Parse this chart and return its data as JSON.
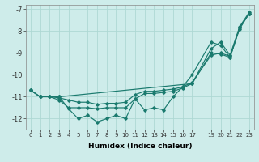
{
  "line_max_x": [
    0,
    1,
    2,
    3,
    17,
    19,
    20,
    21,
    22,
    23
  ],
  "line_max_y": [
    -10.7,
    -11.0,
    -11.0,
    -11.0,
    -10.4,
    -8.8,
    -8.5,
    -9.1,
    -7.8,
    -7.15
  ],
  "line_mean_x": [
    0,
    1,
    2,
    3,
    4,
    5,
    6,
    7,
    8,
    9,
    10,
    11,
    12,
    13,
    14,
    15,
    16,
    17,
    19,
    20,
    21,
    22,
    23
  ],
  "line_mean_y": [
    -10.7,
    -11.0,
    -11.0,
    -11.05,
    -11.15,
    -11.25,
    -11.25,
    -11.35,
    -11.3,
    -11.3,
    -11.25,
    -10.9,
    -10.75,
    -10.75,
    -10.7,
    -10.65,
    -10.55,
    -10.35,
    -9.1,
    -9.0,
    -9.15,
    -7.9,
    -7.2
  ],
  "line_p90_x": [
    0,
    1,
    2,
    3,
    4,
    5,
    6,
    7,
    8,
    9,
    10,
    11,
    12,
    13,
    14,
    15,
    16,
    17,
    19,
    20,
    21,
    22,
    23
  ],
  "line_p90_y": [
    -10.7,
    -11.0,
    -11.0,
    -11.15,
    -11.5,
    -11.5,
    -11.5,
    -11.55,
    -11.5,
    -11.5,
    -11.5,
    -11.1,
    -10.85,
    -10.85,
    -10.8,
    -10.75,
    -10.6,
    -10.4,
    -9.0,
    -9.05,
    -9.2,
    -7.85,
    -7.2
  ],
  "line_min_x": [
    3,
    4,
    5,
    6,
    7,
    8,
    9,
    10,
    11,
    12,
    13,
    14,
    15,
    16,
    17,
    19,
    20,
    21,
    22,
    23
  ],
  "line_min_y": [
    -11.0,
    -11.55,
    -12.0,
    -11.85,
    -12.15,
    -12.0,
    -11.85,
    -12.0,
    -11.1,
    -11.6,
    -11.5,
    -11.6,
    -11.0,
    -10.55,
    -10.0,
    -8.5,
    -8.65,
    -9.2,
    -7.85,
    -7.2
  ],
  "ylim": [
    -12.5,
    -6.8
  ],
  "xlim": [
    -0.5,
    23.5
  ],
  "yticks": [
    -12,
    -11,
    -10,
    -9,
    -8,
    -7
  ],
  "xtick_labels": [
    "0",
    "1",
    "2",
    "3",
    "4",
    "5",
    "6",
    "7",
    "8",
    "9",
    "10",
    "11",
    "12",
    "13",
    "14",
    "15",
    "16",
    "17",
    "19",
    "20",
    "21",
    "22",
    "23"
  ],
  "xtick_pos": [
    0,
    1,
    2,
    3,
    4,
    5,
    6,
    7,
    8,
    9,
    10,
    11,
    12,
    13,
    14,
    15,
    16,
    17,
    19,
    20,
    21,
    22,
    23
  ],
  "xlabel": "Humidex (Indice chaleur)",
  "bg_color": "#ceecea",
  "line_color": "#1a7a6e",
  "grid_color": "#aed8d4"
}
